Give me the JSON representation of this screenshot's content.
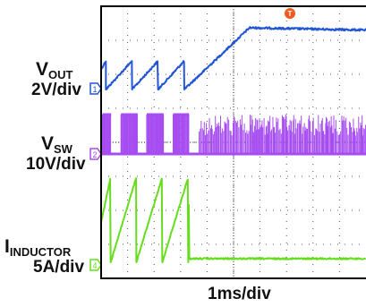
{
  "chart_data": {
    "type": "line",
    "title": "",
    "xlabel": "1ms/div",
    "grid": true,
    "x_divisions": 10,
    "y_divisions": 8,
    "trigger_marker": "T",
    "colors": {
      "vout": "#2155d6",
      "vsw": "#a64cf0",
      "iind": "#66dd1c",
      "frame": "#000000",
      "grid": "#555555",
      "trigger": "#f05a1e"
    },
    "channels": [
      {
        "id": "1",
        "name_main": "V",
        "name_sub": "OUT",
        "scale": "2V/div",
        "color": "#2155d6",
        "marker_label": "1",
        "marker_y": 99,
        "kind": "sawtooth",
        "base_y": 100,
        "top_y": 68,
        "ramp_ms": 0.6,
        "resets_ms": [
          0.18,
          1.17,
          2.15,
          3.14
        ],
        "ramp_end_ms": 5.6,
        "final_y": 31
      },
      {
        "id": "2",
        "name_main": "V",
        "name_sub": "SW",
        "scale": "10V/div",
        "color": "#a64cf0",
        "marker_label": "2",
        "marker_y": 172,
        "kind": "switching",
        "low_y": 172,
        "high_y": 128,
        "bursts_ms": [
          [
            0.05,
            0.38
          ],
          [
            0.75,
            1.38
          ],
          [
            1.72,
            2.36
          ],
          [
            2.72,
            3.32
          ]
        ],
        "continuous_from_ms": 3.7
      },
      {
        "id": "4",
        "name_main": "I",
        "name_sub": "INDUCTOR",
        "scale": "5A/div",
        "color": "#66dd1c",
        "marker_label": "4",
        "marker_y": 296,
        "kind": "sawtooth",
        "base_y": 293,
        "top_y": 198,
        "ramp_ms": 0.68,
        "resets_ms": [
          0.36,
          1.33,
          2.31,
          3.29
        ],
        "settle_ms": 3.32,
        "settle_y": 289
      }
    ]
  }
}
